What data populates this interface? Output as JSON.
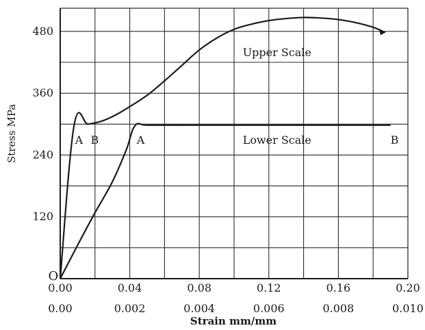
{
  "chart_data": {
    "type": "line",
    "ylabel": "Stress MPa",
    "xlabel": "Strain mm/mm",
    "y_range": [
      0,
      525
    ],
    "y_ticks": [
      {
        "value": 120,
        "label": "120"
      },
      {
        "value": 240,
        "label": "240"
      },
      {
        "value": 360,
        "label": "360"
      },
      {
        "value": 480,
        "label": "480"
      }
    ],
    "upper_scale": {
      "range": [
        0,
        0.2
      ],
      "ticks": [
        {
          "value": 0,
          "label": "0.00"
        },
        {
          "value": 0.04,
          "label": "0.04"
        },
        {
          "value": 0.08,
          "label": "0.08"
        },
        {
          "value": 0.12,
          "label": "0.12"
        },
        {
          "value": 0.16,
          "label": "0.16"
        },
        {
          "value": 0.2,
          "label": "0.20"
        }
      ]
    },
    "lower_scale": {
      "range": [
        0,
        0.01
      ],
      "ticks": [
        {
          "value": 0,
          "label": "0.00"
        },
        {
          "value": 0.002,
          "label": "0.002"
        },
        {
          "value": 0.004,
          "label": "0.004"
        },
        {
          "value": 0.006,
          "label": "0.006"
        },
        {
          "value": 0.008,
          "label": "0.008"
        },
        {
          "value": 0.01,
          "label": "0.010"
        }
      ]
    },
    "grid": {
      "x_step_upper": 0.02,
      "y_step": 60
    },
    "series": [
      {
        "name": "Upper Scale",
        "scale": "upper",
        "points": [
          [
            0,
            0
          ],
          [
            0.008,
            298
          ],
          [
            0.016,
            300
          ],
          [
            0.024,
            306
          ],
          [
            0.032,
            318
          ],
          [
            0.04,
            334
          ],
          [
            0.05,
            356
          ],
          [
            0.06,
            384
          ],
          [
            0.07,
            414
          ],
          [
            0.08,
            444
          ],
          [
            0.09,
            467
          ],
          [
            0.1,
            484
          ],
          [
            0.11,
            494
          ],
          [
            0.12,
            501
          ],
          [
            0.13,
            505
          ],
          [
            0.14,
            507
          ],
          [
            0.15,
            506
          ],
          [
            0.16,
            503
          ],
          [
            0.17,
            497
          ],
          [
            0.18,
            488
          ],
          [
            0.187,
            478
          ]
        ]
      },
      {
        "name": "Lower Scale",
        "scale": "lower",
        "points": [
          [
            0,
            0
          ],
          [
            0.0005,
            65
          ],
          [
            0.001,
            128
          ],
          [
            0.0015,
            188
          ],
          [
            0.0019,
            250
          ],
          [
            0.00215,
            297
          ],
          [
            0.0025,
            298
          ],
          [
            0.0035,
            298
          ],
          [
            0.0045,
            298
          ],
          [
            0.0055,
            298
          ],
          [
            0.0065,
            298
          ],
          [
            0.0075,
            298
          ],
          [
            0.0085,
            298
          ],
          [
            0.0095,
            298
          ]
        ]
      }
    ],
    "annotations": [
      {
        "text": "Upper Scale",
        "scale": "upper",
        "x": 0.105,
        "y": 440
      },
      {
        "text": "Lower Scale",
        "scale": "upper",
        "x": 0.105,
        "y": 270
      },
      {
        "text": "A",
        "scale": "upper",
        "x": 0.0085,
        "y": 270
      },
      {
        "text": "B",
        "scale": "upper",
        "x": 0.0175,
        "y": 270
      },
      {
        "text": "A",
        "scale": "upper",
        "x": 0.044,
        "y": 270
      },
      {
        "text": "B",
        "scale": "upper",
        "x": 0.19,
        "y": 270
      },
      {
        "text": "O",
        "scale": "upper",
        "x": -0.004,
        "y": 0
      }
    ],
    "colors": {
      "curve": "#1a1a1a",
      "grid": "#2a2a2a",
      "axis": "#1a1a1a"
    }
  }
}
